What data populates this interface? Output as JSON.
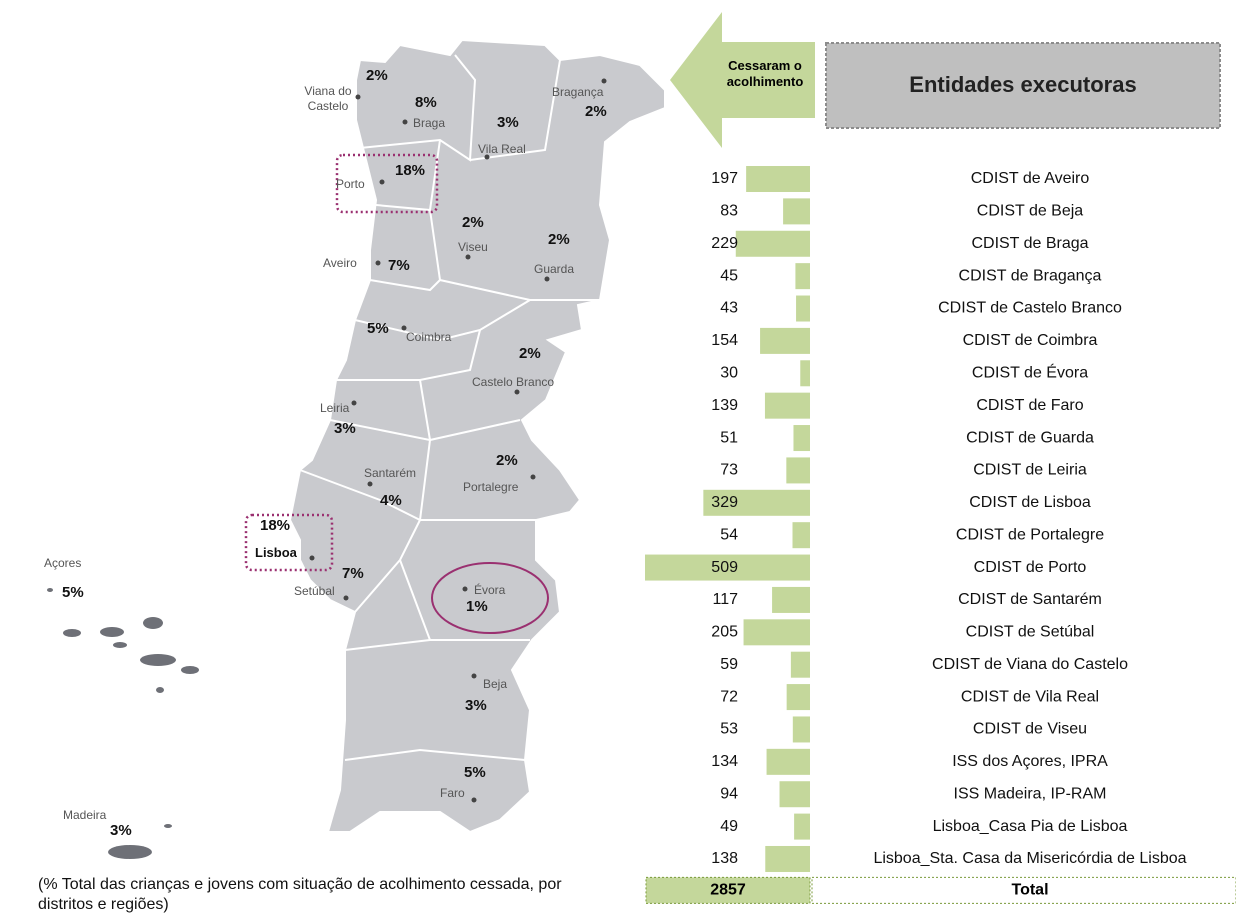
{
  "header": {
    "arrow_label": "Cessaram o acolhimento",
    "title": "Entidades executoras"
  },
  "chart_data": {
    "type": "bar",
    "orientation": "horizontal",
    "categories": [
      "CDIST de Aveiro",
      "CDIST de Beja",
      "CDIST de Braga",
      "CDIST de Bragança",
      "CDIST de Castelo Branco",
      "CDIST de Coimbra",
      "CDIST de Évora",
      "CDIST de Faro",
      "CDIST de Guarda",
      "CDIST de Leiria",
      "CDIST de Lisboa",
      "CDIST de Portalegre",
      "CDIST de Porto",
      "CDIST de Santarém",
      "CDIST de Setúbal",
      "CDIST de Viana do Castelo",
      "CDIST de Vila Real",
      "CDIST de Viseu",
      "ISS dos Açores, IPRA",
      "ISS Madeira, IP-RAM",
      "Lisboa_Casa Pia de Lisboa",
      "Lisboa_Sta. Casa da Misericórdia de Lisboa"
    ],
    "values": [
      197,
      83,
      229,
      45,
      43,
      154,
      30,
      139,
      51,
      73,
      329,
      54,
      509,
      117,
      205,
      59,
      72,
      53,
      134,
      94,
      49,
      138
    ],
    "color": "#c4d79b",
    "total": {
      "label": "Total",
      "value": 2857
    }
  },
  "map": {
    "regions": [
      {
        "name": "Viana do Castelo",
        "pct": "2%"
      },
      {
        "name": "Braga",
        "pct": "8%"
      },
      {
        "name": "Vila Real",
        "pct": "3%"
      },
      {
        "name": "Bragança",
        "pct": "2%"
      },
      {
        "name": "Porto",
        "pct": "18%"
      },
      {
        "name": "Viseu",
        "pct": "2%"
      },
      {
        "name": "Guarda",
        "pct": "2%"
      },
      {
        "name": "Aveiro",
        "pct": "7%"
      },
      {
        "name": "Coimbra",
        "pct": "5%"
      },
      {
        "name": "Castelo Branco",
        "pct": "2%"
      },
      {
        "name": "Leiria",
        "pct": "3%"
      },
      {
        "name": "Santarém",
        "pct": "4%"
      },
      {
        "name": "Portalegre",
        "pct": "2%"
      },
      {
        "name": "Lisboa",
        "pct": "18%"
      },
      {
        "name": "Setúbal",
        "pct": "7%"
      },
      {
        "name": "Évora",
        "pct": "1%"
      },
      {
        "name": "Beja",
        "pct": "3%"
      },
      {
        "name": "Faro",
        "pct": "5%"
      },
      {
        "name": "Açores",
        "pct": "5%"
      },
      {
        "name": "Madeira",
        "pct": "3%"
      }
    ],
    "caption": "(% Total das crianças e jovens com situação de acolhimento cessada, por distritos e regiões)"
  }
}
